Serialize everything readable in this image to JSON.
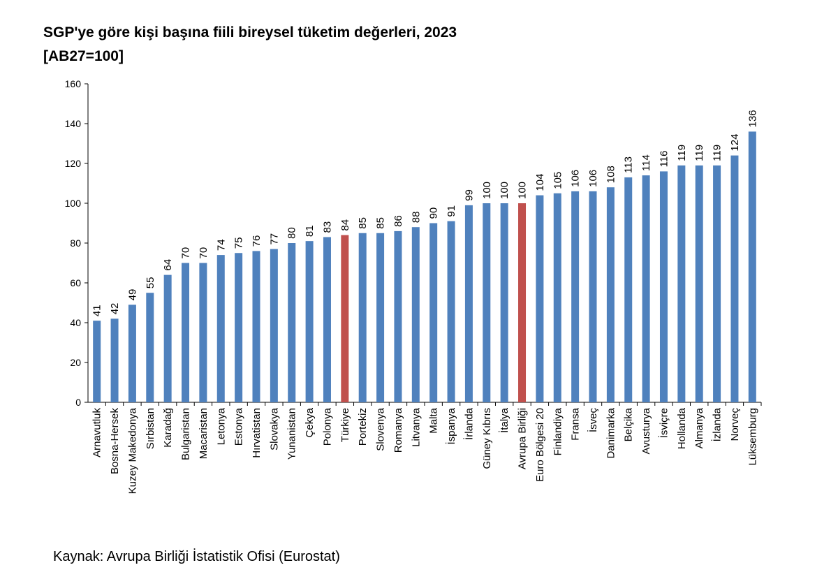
{
  "chart_data": {
    "type": "bar",
    "title": "SGP'ye göre kişi başına fiili bireysel tüketim değerleri, 2023",
    "subtitle": "[AB27=100]",
    "xlabel": "",
    "ylabel": "",
    "ylim": [
      0,
      160
    ],
    "yticks": [
      0,
      20,
      40,
      60,
      80,
      100,
      120,
      140,
      160
    ],
    "grid": false,
    "legend": "none",
    "categories": [
      "Arnavutluk",
      "Bosna-Hersek",
      "Kuzey Makedonya",
      "Sırbistan",
      "Karadağ",
      "Bulgaristan",
      "Macaristan",
      "Letonya",
      "Estonya",
      "Hırvatistan",
      "Slovakya",
      "Yunanistan",
      "Çekya",
      "Polonya",
      "Türkiye",
      "Portekiz",
      "Slovenya",
      "Romanya",
      "Litvanya",
      "Malta",
      "İspanya",
      "İrlanda",
      "Güney Kıbrıs",
      "İtalya",
      "Avrupa Birliği",
      "Euro Bölgesi 20",
      "Finlandiya",
      "Fransa",
      "İsveç",
      "Danimarka",
      "Belçika",
      "Avusturya",
      "İsviçre",
      "Hollanda",
      "Almanya",
      "İzlanda",
      "Norveç",
      "Lüksemburg"
    ],
    "values": [
      41,
      42,
      49,
      55,
      64,
      70,
      70,
      74,
      75,
      76,
      77,
      80,
      81,
      83,
      84,
      85,
      85,
      86,
      88,
      90,
      91,
      99,
      100,
      100,
      100,
      104,
      105,
      106,
      106,
      108,
      113,
      114,
      116,
      119,
      119,
      119,
      124,
      136
    ],
    "colors": {
      "default": "#4f81bd",
      "highlight": "#c0504d"
    },
    "highlighted": [
      "Türkiye",
      "Avrupa Birliği"
    ]
  },
  "source": "Kaynak: Avrupa Birliği İstatistik Ofisi (Eurostat)"
}
